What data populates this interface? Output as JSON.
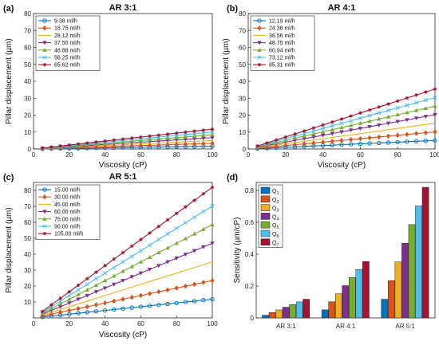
{
  "colors": [
    "#0072BD",
    "#D95319",
    "#EDB120",
    "#7E2F8E",
    "#77AC30",
    "#4DBEEE",
    "#A2142F"
  ],
  "chart_data": [
    {
      "panel": "(a)",
      "type": "line",
      "title": "AR 3:1",
      "xlabel": "Viscosity (cP)",
      "ylabel": "Pillar displacement (µm)",
      "xlim": [
        0,
        100
      ],
      "ylim": [
        0,
        80
      ],
      "xticks": [
        "0",
        "20",
        "40",
        "60",
        "80",
        "100"
      ],
      "yticks": [
        "0",
        "10",
        "20",
        "30",
        "40",
        "50",
        "60",
        "70",
        "80"
      ],
      "legend_position": "top-left",
      "x": [
        5,
        10,
        15,
        20,
        25,
        30,
        35,
        40,
        45,
        50,
        55,
        60,
        65,
        70,
        75,
        80,
        85,
        90,
        95,
        100
      ],
      "series": [
        {
          "name": "9.38 ml/h",
          "marker": "o",
          "slope": 0.0167
        },
        {
          "name": "18.75 ml/h",
          "marker": "d",
          "slope": 0.0335
        },
        {
          "name": "28.12 ml/h",
          "marker": "none",
          "slope": 0.0502
        },
        {
          "name": "37.50 ml/h",
          "marker": "v",
          "slope": 0.067
        },
        {
          "name": "46.88 ml/h",
          "marker": "^",
          "slope": 0.0837
        },
        {
          "name": "56.25 ml/h",
          "marker": "x",
          "slope": 0.1005
        },
        {
          "name": "65.62 ml/h",
          "marker": "*",
          "slope": 0.1172
        }
      ]
    },
    {
      "panel": "(b)",
      "type": "line",
      "title": "AR 4:1",
      "xlabel": "Viscosity (cP)",
      "ylabel": "Pillar displacement (µm)",
      "xlim": [
        0,
        100
      ],
      "ylim": [
        0,
        80
      ],
      "xticks": [
        "0",
        "20",
        "40",
        "60",
        "80",
        "100"
      ],
      "yticks": [
        "0",
        "10",
        "20",
        "30",
        "40",
        "50",
        "60",
        "70",
        "80"
      ],
      "legend_position": "top-left",
      "x": [
        5,
        10,
        15,
        20,
        25,
        30,
        35,
        40,
        45,
        50,
        55,
        60,
        65,
        70,
        75,
        80,
        85,
        90,
        95,
        100
      ],
      "series": [
        {
          "name": "12.19 ml/h",
          "marker": "o",
          "slope": 0.0506
        },
        {
          "name": "24.38 ml/h",
          "marker": "d",
          "slope": 0.1012
        },
        {
          "name": "36.56 ml/h",
          "marker": "none",
          "slope": 0.1518
        },
        {
          "name": "48.75 ml/h",
          "marker": "v",
          "slope": 0.2024
        },
        {
          "name": "60.94 ml/h",
          "marker": "^",
          "slope": 0.253
        },
        {
          "name": "73.12 ml/h",
          "marker": "x",
          "slope": 0.3036
        },
        {
          "name": "85.31 ml/h",
          "marker": "*",
          "slope": 0.3542
        }
      ]
    },
    {
      "panel": "(c)",
      "type": "line",
      "title": "AR 5:1",
      "xlabel": "Viscosity (cP)",
      "ylabel": "Pillar displacement (µm)",
      "xlim": [
        0,
        100
      ],
      "ylim": [
        0,
        85
      ],
      "xticks": [
        "0",
        "20",
        "40",
        "60",
        "80",
        "100"
      ],
      "yticks": [
        "10",
        "20",
        "30",
        "40",
        "50",
        "60",
        "70",
        "80"
      ],
      "legend_position": "top-left",
      "x": [
        5,
        10,
        15,
        20,
        25,
        30,
        35,
        40,
        45,
        50,
        55,
        60,
        65,
        70,
        75,
        80,
        85,
        90,
        95,
        100
      ],
      "series": [
        {
          "name": "15.00 ml/h",
          "marker": "o",
          "slope": 0.1171
        },
        {
          "name": "30.00 ml/h",
          "marker": "d",
          "slope": 0.2342
        },
        {
          "name": "45.00 ml/h",
          "marker": "none",
          "slope": 0.3513
        },
        {
          "name": "60.00 ml/h",
          "marker": "v",
          "slope": 0.4684
        },
        {
          "name": "75.00 ml/h",
          "marker": "^",
          "slope": 0.5855
        },
        {
          "name": "90.00 ml/h",
          "marker": "x",
          "slope": 0.7026
        },
        {
          "name": "105.00 ml/h",
          "marker": "*",
          "slope": 0.8197
        }
      ]
    },
    {
      "panel": "(d)",
      "type": "bar",
      "title": "",
      "xlabel": "",
      "ylabel": "Sensitivity (µm/cP)",
      "categories": [
        "AR 3:1",
        "AR 4:1",
        "AR 5:1"
      ],
      "ylim": [
        0,
        0.85
      ],
      "yticks": [
        "0",
        "0.2",
        "0.4",
        "0.6",
        "0.8"
      ],
      "legend_position": "top-left",
      "series": [
        {
          "name": "Q",
          "sub": "1",
          "values": [
            0.0167,
            0.0506,
            0.1171
          ]
        },
        {
          "name": "Q",
          "sub": "2",
          "values": [
            0.0335,
            0.1012,
            0.2342
          ]
        },
        {
          "name": "Q",
          "sub": "3",
          "values": [
            0.0502,
            0.1518,
            0.3513
          ]
        },
        {
          "name": "Q",
          "sub": "4",
          "values": [
            0.067,
            0.2024,
            0.4684
          ]
        },
        {
          "name": "Q",
          "sub": "5",
          "values": [
            0.0837,
            0.253,
            0.5855
          ]
        },
        {
          "name": "Q",
          "sub": "6",
          "values": [
            0.1005,
            0.3036,
            0.7026
          ]
        },
        {
          "name": "Q",
          "sub": "7",
          "values": [
            0.1172,
            0.3542,
            0.8197
          ]
        }
      ]
    }
  ]
}
